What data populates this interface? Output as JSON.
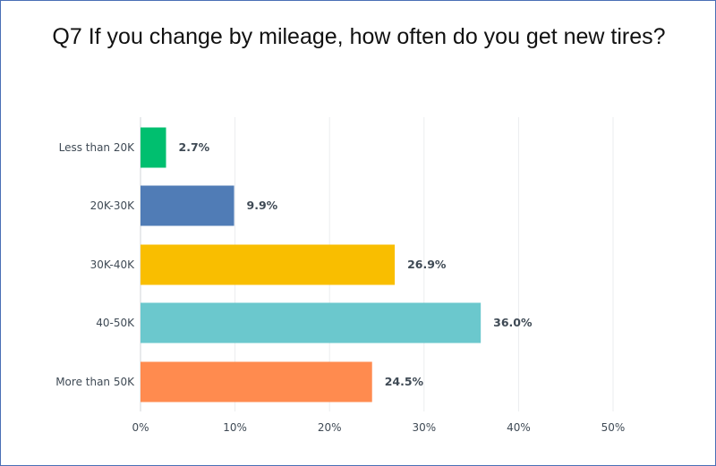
{
  "chart_data": {
    "type": "bar",
    "orientation": "horizontal",
    "title": "Q7 If you change by mileage, how often do you get new tires?",
    "categories": [
      "Less than 20K",
      "20K-30K",
      "30K-40K",
      "40-50K",
      "More than 50K"
    ],
    "values": [
      2.7,
      9.9,
      26.9,
      36.0,
      24.5
    ],
    "data_labels": [
      "2.7%",
      "9.9%",
      "26.9%",
      "36.0%",
      "24.5%"
    ],
    "colors": [
      "#00bf6f",
      "#507cb6",
      "#f9be00",
      "#6bc8cd",
      "#ff8b4f"
    ],
    "xlim": [
      0,
      50
    ],
    "xticks": [
      0,
      10,
      20,
      30,
      40,
      50
    ],
    "xtick_labels": [
      "0%",
      "10%",
      "20%",
      "30%",
      "40%",
      "50%"
    ],
    "xlabel": "",
    "ylabel": "",
    "grid": true,
    "legend": "none"
  }
}
